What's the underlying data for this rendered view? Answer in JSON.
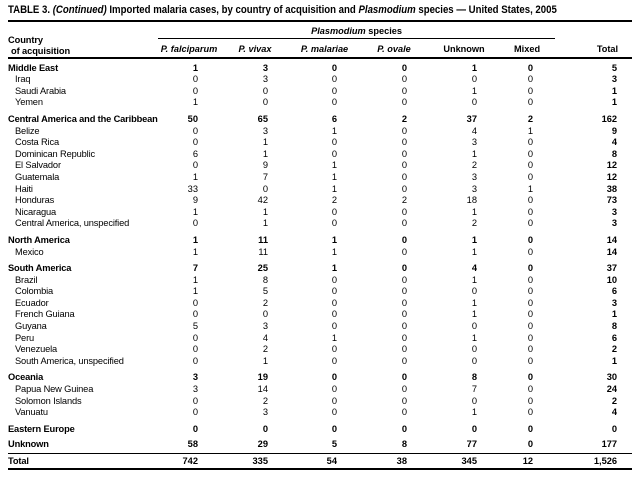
{
  "colors": {
    "text": "#000000",
    "background": "#ffffff",
    "rules": "#000000"
  },
  "title": {
    "part1": "TABLE 3.",
    "part2": "(Continued)",
    "part3": "Imported malaria cases, by country of acquisition and",
    "part4": "Plasmodium",
    "part5": "species — United States, 2005"
  },
  "header": {
    "country_line1": "Country",
    "country_line2": "of acquisition",
    "spanner_genus": "Plasmodium",
    "spanner_rest": "species",
    "columns": [
      {
        "label": "P. falciparum",
        "italic": true
      },
      {
        "label": "P. vivax",
        "italic": true
      },
      {
        "label": "P. malariae",
        "italic": true
      },
      {
        "label": "P. ovale",
        "italic": true
      },
      {
        "label": "Unknown",
        "italic": false
      },
      {
        "label": "Mixed",
        "italic": false
      },
      {
        "label": "Total",
        "italic": false
      }
    ]
  },
  "table": {
    "rows": [
      {
        "label": "Middle East",
        "level": "group",
        "values": [
          "1",
          "3",
          "0",
          "0",
          "1",
          "0",
          "5"
        ]
      },
      {
        "label": "Iraq",
        "level": "sub",
        "values": [
          "0",
          "3",
          "0",
          "0",
          "0",
          "0",
          "3"
        ]
      },
      {
        "label": "Saudi Arabia",
        "level": "sub",
        "values": [
          "0",
          "0",
          "0",
          "0",
          "1",
          "0",
          "1"
        ]
      },
      {
        "label": "Yemen",
        "level": "sub",
        "values": [
          "1",
          "0",
          "0",
          "0",
          "0",
          "0",
          "1"
        ]
      },
      {
        "label": "Central America and the Caribbean",
        "level": "group",
        "gap": true,
        "values": [
          "50",
          "65",
          "6",
          "2",
          "37",
          "2",
          "162"
        ]
      },
      {
        "label": "Belize",
        "level": "sub",
        "values": [
          "0",
          "3",
          "1",
          "0",
          "4",
          "1",
          "9"
        ]
      },
      {
        "label": "Costa Rica",
        "level": "sub",
        "values": [
          "0",
          "1",
          "0",
          "0",
          "3",
          "0",
          "4"
        ]
      },
      {
        "label": "Dominican Republic",
        "level": "sub",
        "values": [
          "6",
          "1",
          "0",
          "0",
          "1",
          "0",
          "8"
        ]
      },
      {
        "label": "El Salvador",
        "level": "sub",
        "values": [
          "0",
          "9",
          "1",
          "0",
          "2",
          "0",
          "12"
        ]
      },
      {
        "label": "Guatemala",
        "level": "sub",
        "values": [
          "1",
          "7",
          "1",
          "0",
          "3",
          "0",
          "12"
        ]
      },
      {
        "label": "Haiti",
        "level": "sub",
        "values": [
          "33",
          "0",
          "1",
          "0",
          "3",
          "1",
          "38"
        ]
      },
      {
        "label": "Honduras",
        "level": "sub",
        "values": [
          "9",
          "42",
          "2",
          "2",
          "18",
          "0",
          "73"
        ]
      },
      {
        "label": "Nicaragua",
        "level": "sub",
        "values": [
          "1",
          "1",
          "0",
          "0",
          "1",
          "0",
          "3"
        ]
      },
      {
        "label": "Central America, unspecified",
        "level": "sub",
        "values": [
          "0",
          "1",
          "0",
          "0",
          "2",
          "0",
          "3"
        ]
      },
      {
        "label": "North America",
        "level": "group",
        "gap": true,
        "values": [
          "1",
          "11",
          "1",
          "0",
          "1",
          "0",
          "14"
        ]
      },
      {
        "label": "Mexico",
        "level": "sub",
        "values": [
          "1",
          "11",
          "1",
          "0",
          "1",
          "0",
          "14"
        ]
      },
      {
        "label": "South America",
        "level": "group",
        "gap": true,
        "values": [
          "7",
          "25",
          "1",
          "0",
          "4",
          "0",
          "37"
        ]
      },
      {
        "label": "Brazil",
        "level": "sub",
        "values": [
          "1",
          "8",
          "0",
          "0",
          "1",
          "0",
          "10"
        ]
      },
      {
        "label": "Colombia",
        "level": "sub",
        "values": [
          "1",
          "5",
          "0",
          "0",
          "0",
          "0",
          "6"
        ]
      },
      {
        "label": "Ecuador",
        "level": "sub",
        "values": [
          "0",
          "2",
          "0",
          "0",
          "1",
          "0",
          "3"
        ]
      },
      {
        "label": "French Guiana",
        "level": "sub",
        "values": [
          "0",
          "0",
          "0",
          "0",
          "1",
          "0",
          "1"
        ]
      },
      {
        "label": "Guyana",
        "level": "sub",
        "values": [
          "5",
          "3",
          "0",
          "0",
          "0",
          "0",
          "8"
        ]
      },
      {
        "label": "Peru",
        "level": "sub",
        "values": [
          "0",
          "4",
          "1",
          "0",
          "1",
          "0",
          "6"
        ]
      },
      {
        "label": "Venezuela",
        "level": "sub",
        "values": [
          "0",
          "2",
          "0",
          "0",
          "0",
          "0",
          "2"
        ]
      },
      {
        "label": "South America, unspecified",
        "level": "sub",
        "values": [
          "0",
          "1",
          "0",
          "0",
          "0",
          "0",
          "1"
        ]
      },
      {
        "label": "Oceania",
        "level": "group",
        "gap": true,
        "values": [
          "3",
          "19",
          "0",
          "0",
          "8",
          "0",
          "30"
        ]
      },
      {
        "label": "Papua New Guinea",
        "level": "sub",
        "values": [
          "3",
          "14",
          "0",
          "0",
          "7",
          "0",
          "24"
        ]
      },
      {
        "label": "Solomon Islands",
        "level": "sub",
        "values": [
          "0",
          "2",
          "0",
          "0",
          "0",
          "0",
          "2"
        ]
      },
      {
        "label": "Vanuatu",
        "level": "sub",
        "values": [
          "0",
          "3",
          "0",
          "0",
          "1",
          "0",
          "4"
        ]
      },
      {
        "label": "Eastern Europe",
        "level": "group",
        "gap": true,
        "values": [
          "0",
          "0",
          "0",
          "0",
          "0",
          "0",
          "0"
        ]
      },
      {
        "label": "Unknown",
        "level": "group",
        "gap": true,
        "presep": true,
        "values": [
          "58",
          "29",
          "5",
          "8",
          "77",
          "0",
          "177"
        ]
      },
      {
        "label": "Total",
        "level": "group",
        "topline": true,
        "values": [
          "742",
          "335",
          "54",
          "38",
          "345",
          "12",
          "1,526"
        ]
      }
    ]
  }
}
